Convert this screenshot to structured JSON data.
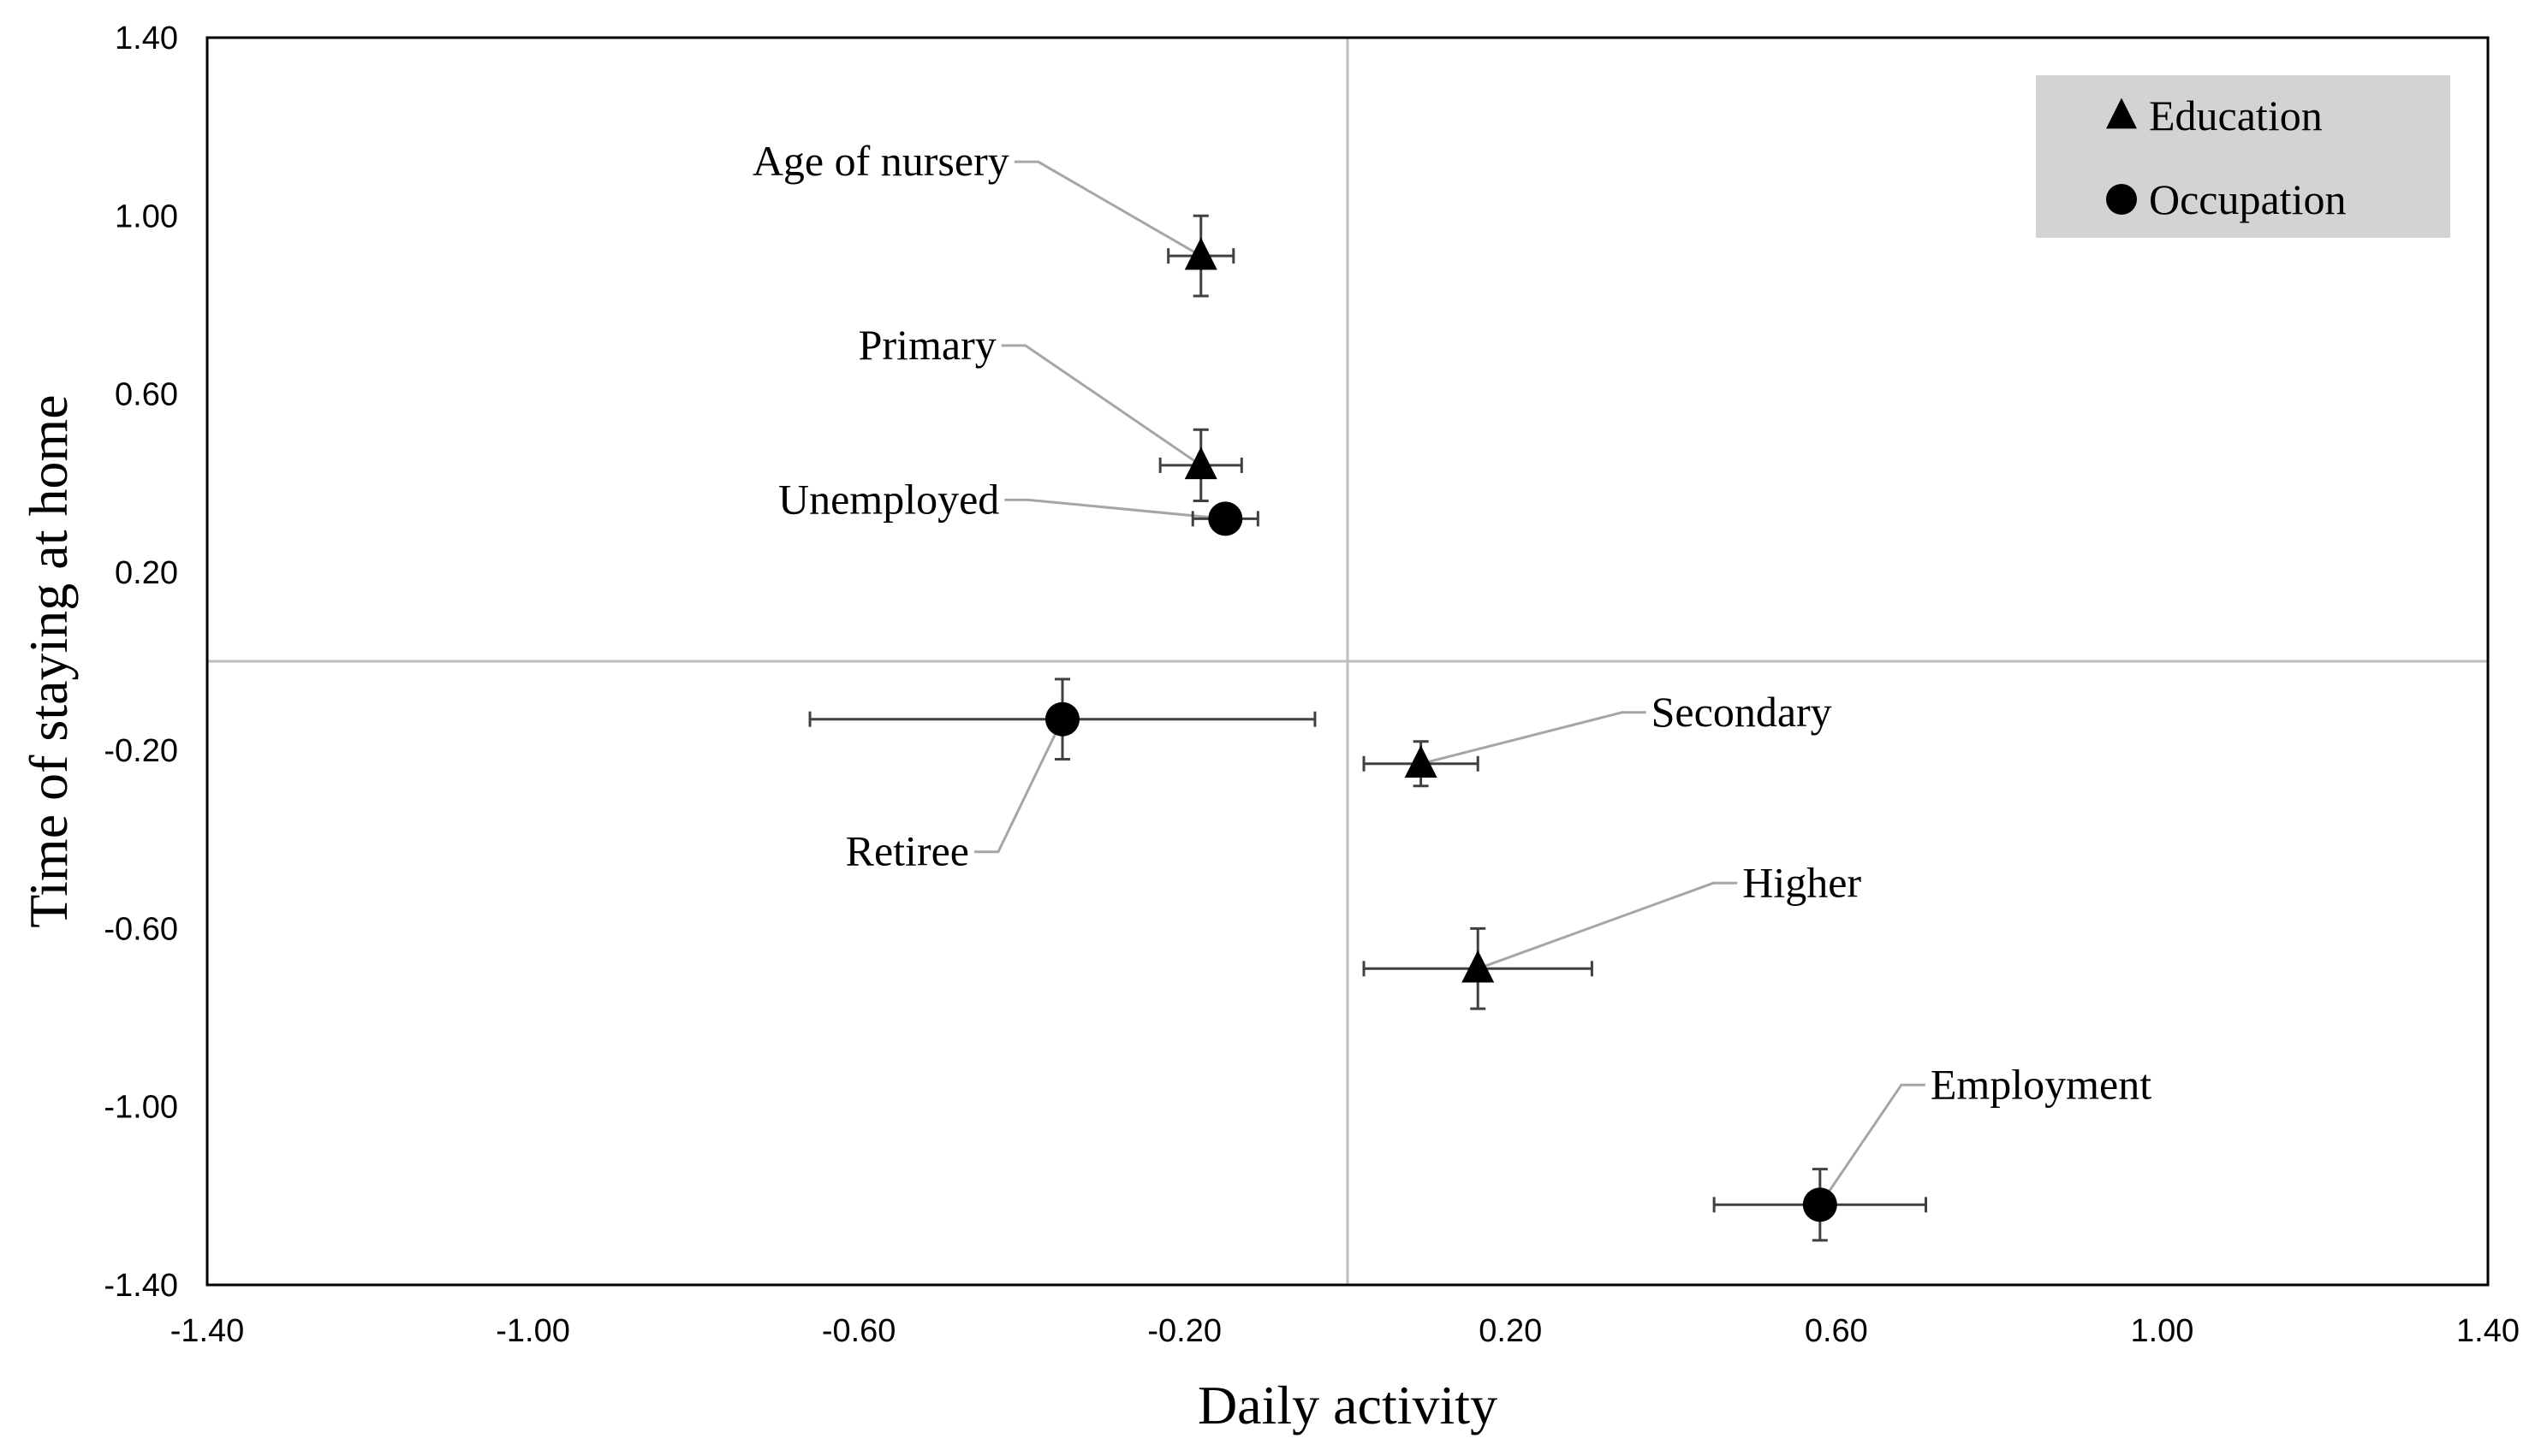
{
  "chart_data": {
    "type": "scatter",
    "xlabel": "Daily activity",
    "ylabel": "Time of staying at home",
    "xlim": [
      -1.4,
      1.4
    ],
    "ylim": [
      -1.4,
      1.4
    ],
    "xticks": [
      "-1.40",
      "-1.00",
      "-0.60",
      "-0.20",
      "0.20",
      "0.60",
      "1.00",
      "1.40"
    ],
    "yticks": [
      "1.40",
      "1.00",
      "0.60",
      "0.20",
      "-0.20",
      "-0.60",
      "-1.00",
      "-1.40"
    ],
    "reference_lines": {
      "x": 0,
      "y": 0
    },
    "legend": {
      "position": "top-right",
      "entries": [
        {
          "name": "Education",
          "marker": "triangle"
        },
        {
          "name": "Occupation",
          "marker": "circle"
        }
      ]
    },
    "series": [
      {
        "name": "Education",
        "marker": "triangle",
        "points": [
          {
            "label": "Age of nursery",
            "x": -0.18,
            "y": 0.91,
            "xerr": 0.04,
            "yerr": 0.09
          },
          {
            "label": "Primary",
            "x": -0.18,
            "y": 0.44,
            "xerr": 0.05,
            "yerr": 0.08
          },
          {
            "label": "Secondary",
            "x": 0.09,
            "y": -0.23,
            "xerr": 0.07,
            "yerr": 0.05
          },
          {
            "label": "Higher",
            "x": 0.16,
            "y": -0.69,
            "xerr": 0.14,
            "yerr": 0.09
          }
        ]
      },
      {
        "name": "Occupation",
        "marker": "circle",
        "points": [
          {
            "label": "Unemployed",
            "x": -0.15,
            "y": 0.32,
            "xerr": 0.04,
            "yerr": 0.03
          },
          {
            "label": "Retiree",
            "x": -0.35,
            "y": -0.13,
            "xerr": 0.31,
            "yerr": 0.09
          },
          {
            "label": "Employment",
            "x": 0.58,
            "y": -1.22,
            "xerr": 0.13,
            "yerr": 0.08
          }
        ]
      }
    ]
  }
}
